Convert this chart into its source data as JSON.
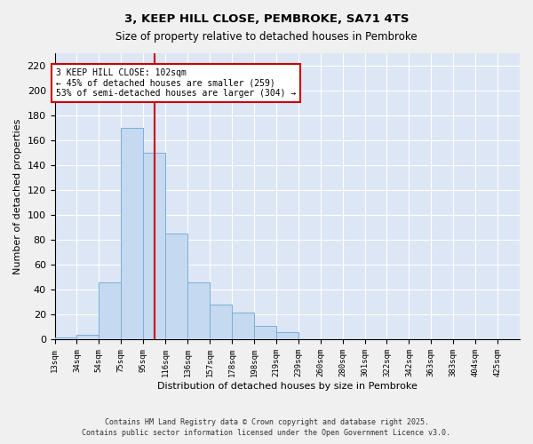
{
  "title_line1": "3, KEEP HILL CLOSE, PEMBROKE, SA71 4TS",
  "title_line2": "Size of property relative to detached houses in Pembroke",
  "xlabel": "Distribution of detached houses by size in Pembroke",
  "ylabel": "Number of detached properties",
  "bin_labels": [
    "13sqm",
    "34sqm",
    "54sqm",
    "75sqm",
    "95sqm",
    "116sqm",
    "136sqm",
    "157sqm",
    "178sqm",
    "198sqm",
    "219sqm",
    "239sqm",
    "260sqm",
    "280sqm",
    "301sqm",
    "322sqm",
    "342sqm",
    "363sqm",
    "383sqm",
    "404sqm",
    "425sqm"
  ],
  "counts": [
    2,
    4,
    46,
    170,
    150,
    85,
    46,
    28,
    22,
    11,
    6,
    0,
    0,
    0,
    0,
    0,
    0,
    0,
    0,
    0,
    0
  ],
  "num_bins": 21,
  "property_bin": 4.5,
  "bar_color": "#c5d9f0",
  "bar_edge_color": "#7bafd4",
  "red_line_color": "#cc0000",
  "annotation_text": "3 KEEP HILL CLOSE: 102sqm\n← 45% of detached houses are smaller (259)\n53% of semi-detached houses are larger (304) →",
  "annotation_box_color": "#ffffff",
  "annotation_box_edge": "#cc0000",
  "ylim": [
    0,
    230
  ],
  "yticks": [
    0,
    20,
    40,
    60,
    80,
    100,
    120,
    140,
    160,
    180,
    200,
    220
  ],
  "footer_line1": "Contains HM Land Registry data © Crown copyright and database right 2025.",
  "footer_line2": "Contains public sector information licensed under the Open Government Licence v3.0.",
  "fig_facecolor": "#f0f0f0",
  "plot_facecolor": "#dce6f5"
}
